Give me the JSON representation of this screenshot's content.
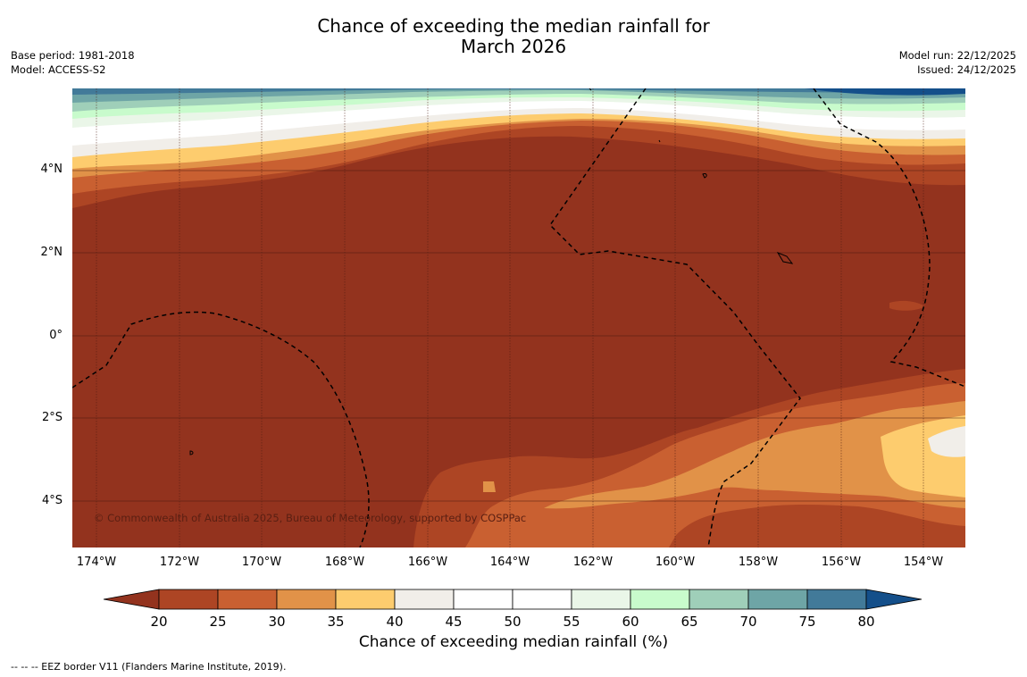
{
  "title_line1": "Chance of exceeding the median rainfall for",
  "title_line2": "March 2026",
  "base_period": "Base period: 1981-2018",
  "model": "Model: ACCESS-S2",
  "model_run": "Model run: 22/12/2025",
  "issued": "Issued: 24/12/2025",
  "copyright": "© Commonwealth of Australia 2025, Bureau of Meteorology, supported by COSPPac",
  "lat_labels": [
    "4°N",
    "2°N",
    "0°",
    "2°S",
    "4°S"
  ],
  "lon_labels": [
    "174°W",
    "172°W",
    "170°W",
    "168°W",
    "166°W",
    "164°W",
    "162°W",
    "160°W",
    "158°W",
    "156°W",
    "154°W"
  ],
  "colorbar": {
    "label": "Chance of exceeding median rainfall (%)",
    "ticks": [
      "20",
      "25",
      "30",
      "35",
      "40",
      "45",
      "50",
      "55",
      "60",
      "65",
      "70",
      "75",
      "80"
    ],
    "colors": [
      "#93331e",
      "#ad4524",
      "#c96031",
      "#e19248",
      "#fdcc6e",
      "#f1eee9",
      "#ffffff",
      "#ffffff",
      "#eaf6e8",
      "#c8fbcc",
      "#9fcfb9",
      "#6ea5a6",
      "#427a99",
      "#144f8a"
    ]
  },
  "footnote": "--  --  -- EEZ border V11 (Flanders Marine Institute, 2019)."
}
